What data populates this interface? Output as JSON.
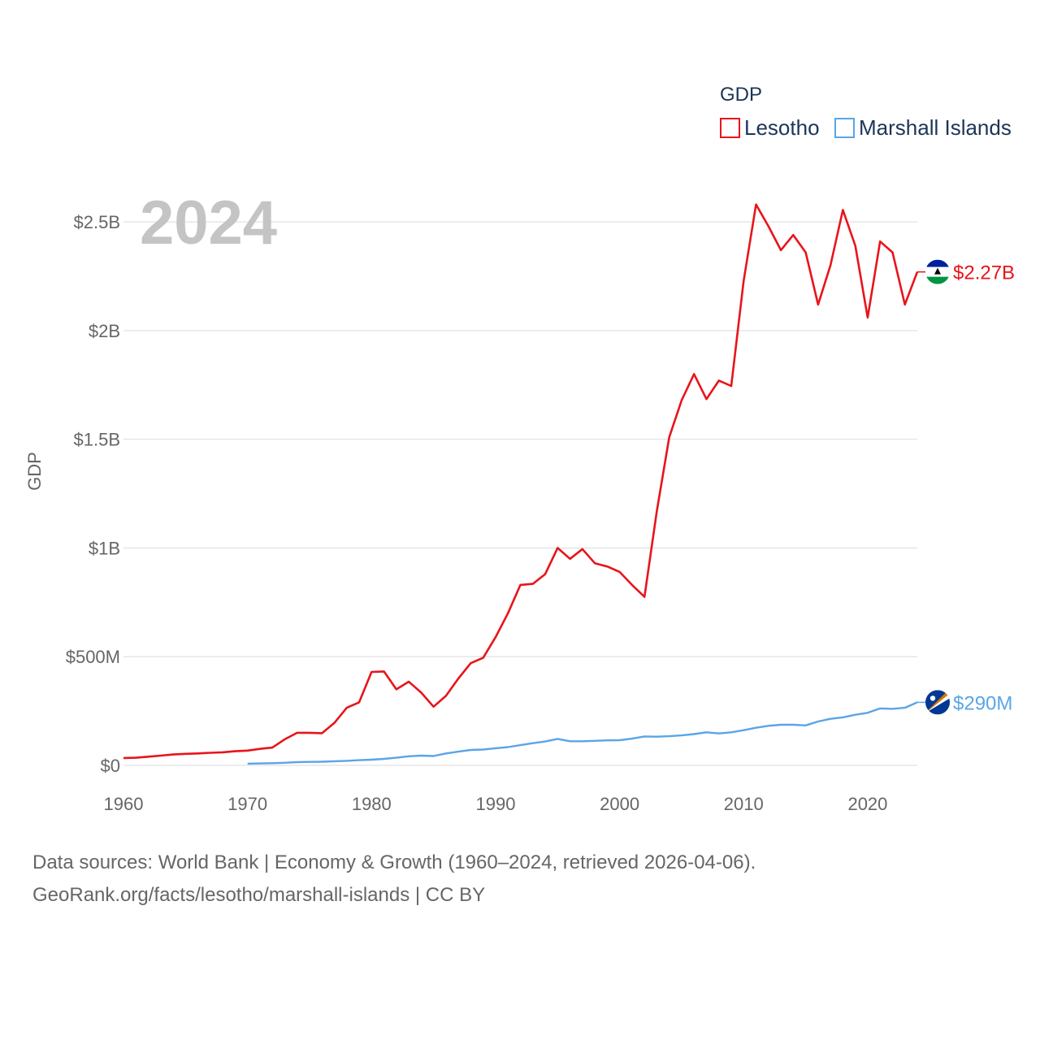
{
  "chart_data": {
    "type": "line",
    "title": "GDP",
    "legend_title": "GDP",
    "year_label": "2024",
    "xlabel": "",
    "ylabel": "GDP",
    "xlim": [
      1960,
      2024
    ],
    "ylim": [
      0,
      2.7
    ],
    "unit": "billions USD",
    "x_ticks": [
      1960,
      1970,
      1980,
      1990,
      2000,
      2010,
      2020
    ],
    "x_tick_labels": [
      "1960",
      "1970",
      "1980",
      "1990",
      "2000",
      "2010",
      "2020"
    ],
    "y_ticks": [
      0,
      0.5,
      1,
      1.5,
      2,
      2.5
    ],
    "y_tick_labels": [
      "$0",
      "$500M",
      "$1B",
      "$1.5B",
      "$2B",
      "$2.5B"
    ],
    "series": [
      {
        "name": "Lesotho",
        "color": "#e8141b",
        "end_label": "$2.27B",
        "x": [
          1960,
          1961,
          1962,
          1963,
          1964,
          1965,
          1966,
          1967,
          1968,
          1969,
          1970,
          1971,
          1972,
          1973,
          1974,
          1975,
          1976,
          1977,
          1978,
          1979,
          1980,
          1981,
          1982,
          1983,
          1984,
          1985,
          1986,
          1987,
          1988,
          1989,
          1990,
          1991,
          1992,
          1993,
          1994,
          1995,
          1996,
          1997,
          1998,
          1999,
          2000,
          2001,
          2002,
          2003,
          2004,
          2005,
          2006,
          2007,
          2008,
          2009,
          2010,
          2011,
          2012,
          2013,
          2014,
          2015,
          2016,
          2017,
          2018,
          2019,
          2020,
          2021,
          2022,
          2023,
          2024
        ],
        "values": [
          0.034,
          0.035,
          0.04,
          0.045,
          0.05,
          0.053,
          0.055,
          0.058,
          0.06,
          0.065,
          0.068,
          0.076,
          0.082,
          0.12,
          0.15,
          0.15,
          0.148,
          0.195,
          0.265,
          0.29,
          0.43,
          0.432,
          0.35,
          0.385,
          0.335,
          0.27,
          0.32,
          0.4,
          0.47,
          0.495,
          0.59,
          0.7,
          0.83,
          0.835,
          0.88,
          1.0,
          0.95,
          0.995,
          0.93,
          0.915,
          0.89,
          0.83,
          0.775,
          1.17,
          1.51,
          1.68,
          1.8,
          1.685,
          1.77,
          1.745,
          2.23,
          2.58,
          2.48,
          2.37,
          2.44,
          2.36,
          2.12,
          2.3,
          2.555,
          2.39,
          2.06,
          2.41,
          2.36,
          2.12,
          2.27
        ]
      },
      {
        "name": "Marshall Islands",
        "color": "#5aa5e6",
        "end_label": "$290M",
        "x": [
          1970,
          1971,
          1972,
          1973,
          1974,
          1975,
          1976,
          1977,
          1978,
          1979,
          1980,
          1981,
          1982,
          1983,
          1984,
          1985,
          1986,
          1987,
          1988,
          1989,
          1990,
          1991,
          1992,
          1993,
          1994,
          1995,
          1996,
          1997,
          1998,
          1999,
          2000,
          2001,
          2002,
          2003,
          2004,
          2005,
          2006,
          2007,
          2008,
          2009,
          2010,
          2011,
          2012,
          2013,
          2014,
          2015,
          2016,
          2017,
          2018,
          2019,
          2020,
          2021,
          2022,
          2023,
          2024
        ],
        "values": [
          0.008,
          0.009,
          0.01,
          0.012,
          0.015,
          0.016,
          0.017,
          0.019,
          0.021,
          0.024,
          0.026,
          0.03,
          0.035,
          0.042,
          0.045,
          0.043,
          0.055,
          0.063,
          0.071,
          0.073,
          0.079,
          0.084,
          0.093,
          0.102,
          0.11,
          0.122,
          0.111,
          0.111,
          0.113,
          0.115,
          0.116,
          0.123,
          0.133,
          0.132,
          0.134,
          0.138,
          0.144,
          0.152,
          0.147,
          0.152,
          0.162,
          0.173,
          0.182,
          0.187,
          0.187,
          0.184,
          0.202,
          0.214,
          0.221,
          0.233,
          0.242,
          0.262,
          0.26,
          0.265,
          0.29
        ]
      }
    ]
  },
  "footer": {
    "source_line1": "Data sources: World Bank | Economy & Growth (1960–2024, retrieved 2026-04-06).",
    "source_line2": "GeoRank.org/facts/lesotho/marshall-islands | CC BY"
  }
}
